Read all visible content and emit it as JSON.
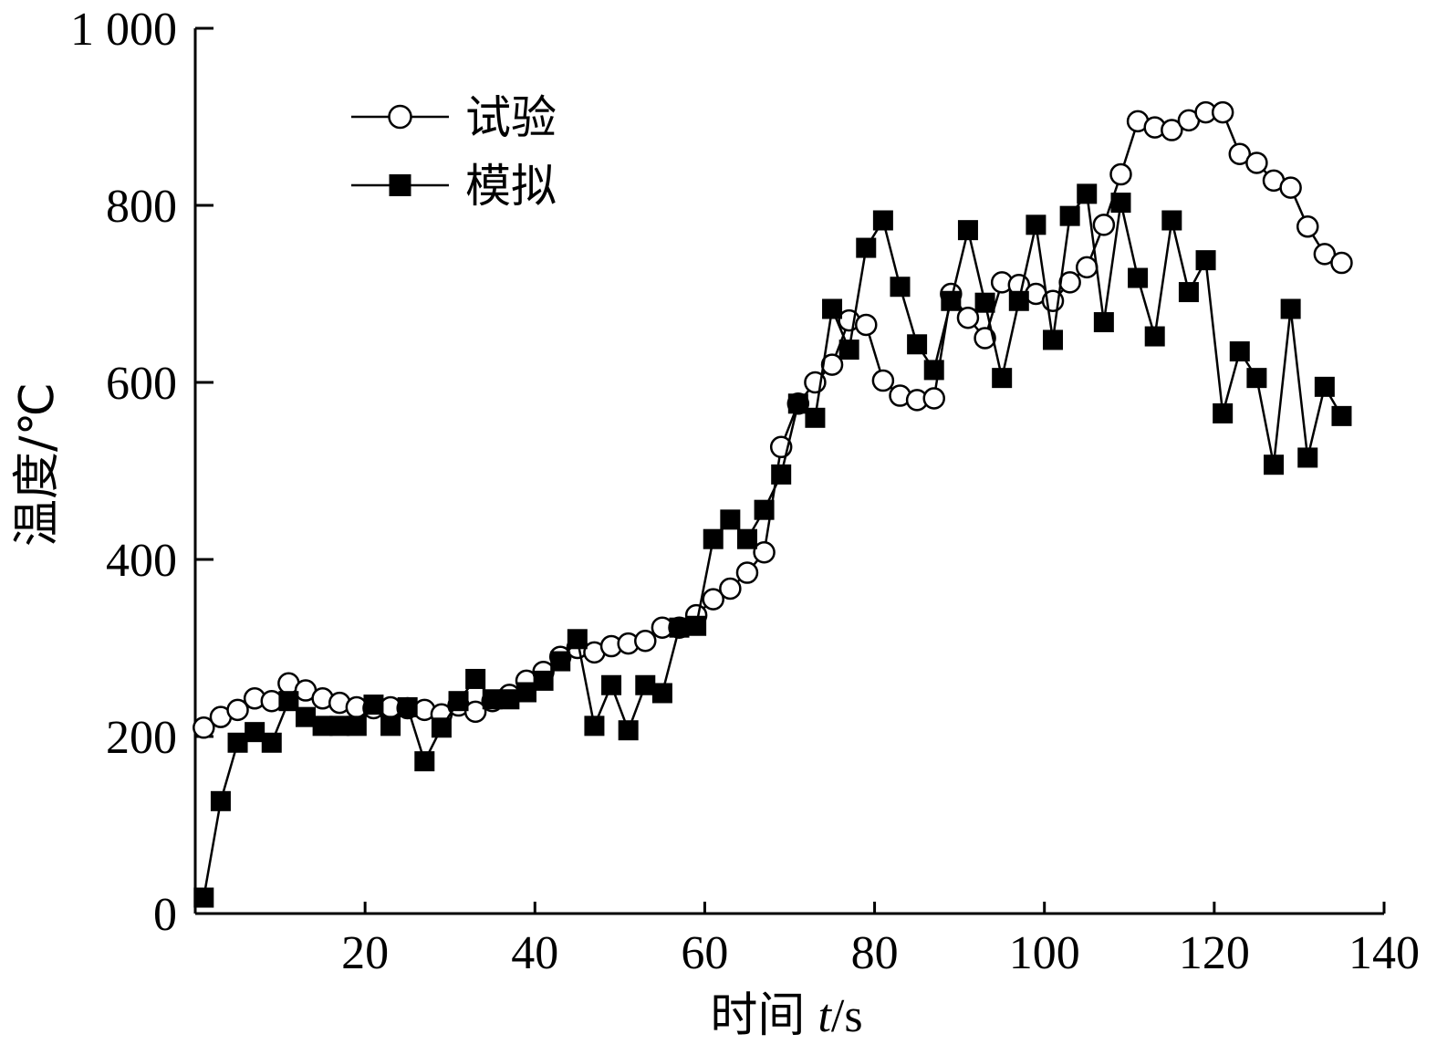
{
  "chart_data": {
    "type": "line",
    "xlabel": "时间",
    "xlabel_var": "t",
    "xlabel_unit": "/s",
    "ylabel": "温度/℃",
    "xlim": [
      0,
      140
    ],
    "ylim": [
      0,
      1000
    ],
    "xticks": [
      20,
      40,
      60,
      80,
      100,
      120,
      140
    ],
    "xtick_labels": [
      "20",
      "40",
      "60",
      "80",
      "100",
      "120",
      "140"
    ],
    "yticks": [
      0,
      200,
      400,
      600,
      800,
      1000
    ],
    "ytick_labels": [
      "0",
      "200",
      "400",
      "600",
      "800",
      "1 000"
    ],
    "legend_position": "top-left",
    "series": [
      {
        "name": "试验",
        "marker": "open-circle",
        "color": "#000000",
        "x": [
          1,
          3,
          5,
          7,
          9,
          11,
          13,
          15,
          17,
          19,
          21,
          23,
          25,
          27,
          29,
          31,
          33,
          35,
          37,
          39,
          41,
          43,
          45,
          47,
          49,
          51,
          53,
          55,
          57,
          59,
          61,
          63,
          65,
          67,
          69,
          71,
          73,
          75,
          77,
          79,
          81,
          83,
          85,
          87,
          89,
          91,
          93,
          95,
          97,
          99,
          101,
          103,
          105,
          107,
          109,
          111,
          113,
          115,
          117,
          119,
          121,
          123,
          125,
          127,
          129,
          131,
          133,
          135
        ],
        "y": [
          210,
          222,
          230,
          243,
          240,
          260,
          252,
          243,
          238,
          233,
          232,
          233,
          232,
          230,
          225,
          235,
          228,
          240,
          247,
          263,
          273,
          290,
          300,
          295,
          302,
          305,
          308,
          323,
          323,
          337,
          355,
          367,
          385,
          408,
          527,
          576,
          600,
          620,
          670,
          665,
          602,
          585,
          580,
          582,
          700,
          673,
          650,
          713,
          710,
          700,
          692,
          713,
          730,
          778,
          835,
          895,
          888,
          885,
          896,
          905,
          905,
          858,
          848,
          828,
          820,
          776,
          745,
          735
        ]
      },
      {
        "name": "模拟",
        "marker": "filled-square",
        "color": "#000000",
        "x": [
          1,
          3,
          5,
          7,
          9,
          11,
          13,
          15,
          17,
          19,
          21,
          23,
          25,
          27,
          29,
          31,
          33,
          35,
          37,
          39,
          41,
          43,
          45,
          47,
          49,
          51,
          53,
          55,
          57,
          59,
          61,
          63,
          65,
          67,
          69,
          71,
          73,
          75,
          77,
          79,
          81,
          83,
          85,
          87,
          89,
          91,
          93,
          95,
          97,
          99,
          101,
          103,
          105,
          107,
          109,
          111,
          113,
          115,
          117,
          119,
          121,
          123,
          125,
          127,
          129,
          131,
          133,
          135
        ],
        "y": [
          18,
          127,
          193,
          205,
          193,
          240,
          222,
          212,
          212,
          212,
          236,
          212,
          233,
          172,
          210,
          240,
          265,
          242,
          242,
          250,
          263,
          285,
          310,
          212,
          258,
          207,
          258,
          249,
          323,
          325,
          423,
          445,
          423,
          456,
          496,
          576,
          560,
          683,
          637,
          752,
          783,
          708,
          643,
          614,
          692,
          772,
          690,
          605,
          692,
          778,
          648,
          788,
          813,
          668,
          803,
          718,
          652,
          783,
          702,
          738,
          565,
          635,
          605,
          507,
          683,
          515,
          595,
          562
        ]
      }
    ]
  }
}
